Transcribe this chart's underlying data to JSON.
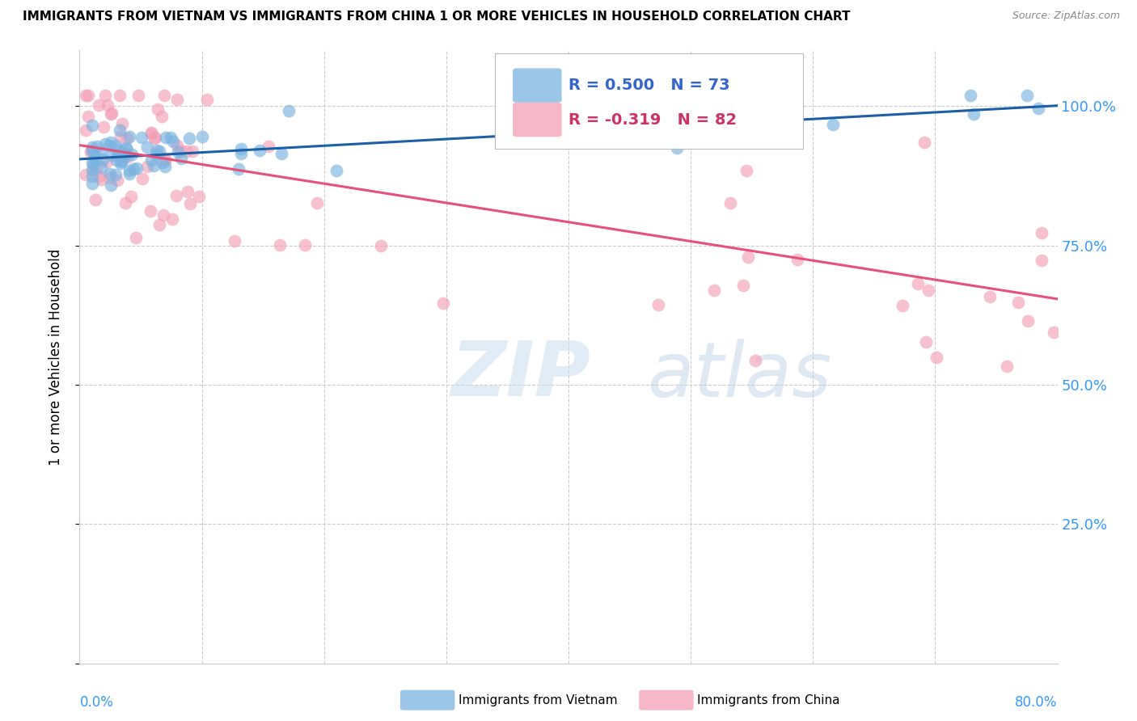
{
  "title": "IMMIGRANTS FROM VIETNAM VS IMMIGRANTS FROM CHINA 1 OR MORE VEHICLES IN HOUSEHOLD CORRELATION CHART",
  "source": "Source: ZipAtlas.com",
  "ylabel": "1 or more Vehicles in Household",
  "legend_vietnam": "Immigrants from Vietnam",
  "legend_china": "Immigrants from China",
  "R_vietnam": 0.5,
  "N_vietnam": 73,
  "R_china": -0.319,
  "N_china": 82,
  "color_vietnam": "#7ab3e0",
  "color_china": "#f4a0b8",
  "line_color_vietnam": "#1a5fa8",
  "line_color_china": "#e8507a",
  "watermark_zip": "ZIP",
  "watermark_atlas": "atlas",
  "background_color": "#ffffff",
  "xlim": [
    0.0,
    0.8
  ],
  "ylim": [
    0.0,
    1.1
  ],
  "ytick_positions": [
    0.0,
    0.25,
    0.5,
    0.75,
    1.0
  ],
  "ytick_labels": [
    "",
    "25.0%",
    "50.0%",
    "75.0%",
    "100.0%"
  ],
  "xtick_positions": [
    0.0,
    0.1,
    0.2,
    0.3,
    0.4,
    0.5,
    0.6,
    0.7,
    0.8
  ],
  "grid_color": "#cccccc",
  "title_color": "#000000",
  "source_color": "#888888",
  "axis_label_color": "#3399ff",
  "ylabel_color": "#000000",
  "legend_R_vietnam_color": "#3366cc",
  "legend_R_china_color": "#cc3366",
  "vietnam_intercept": 0.905,
  "vietnam_slope": 0.12,
  "china_intercept": 0.93,
  "china_slope": -0.345
}
